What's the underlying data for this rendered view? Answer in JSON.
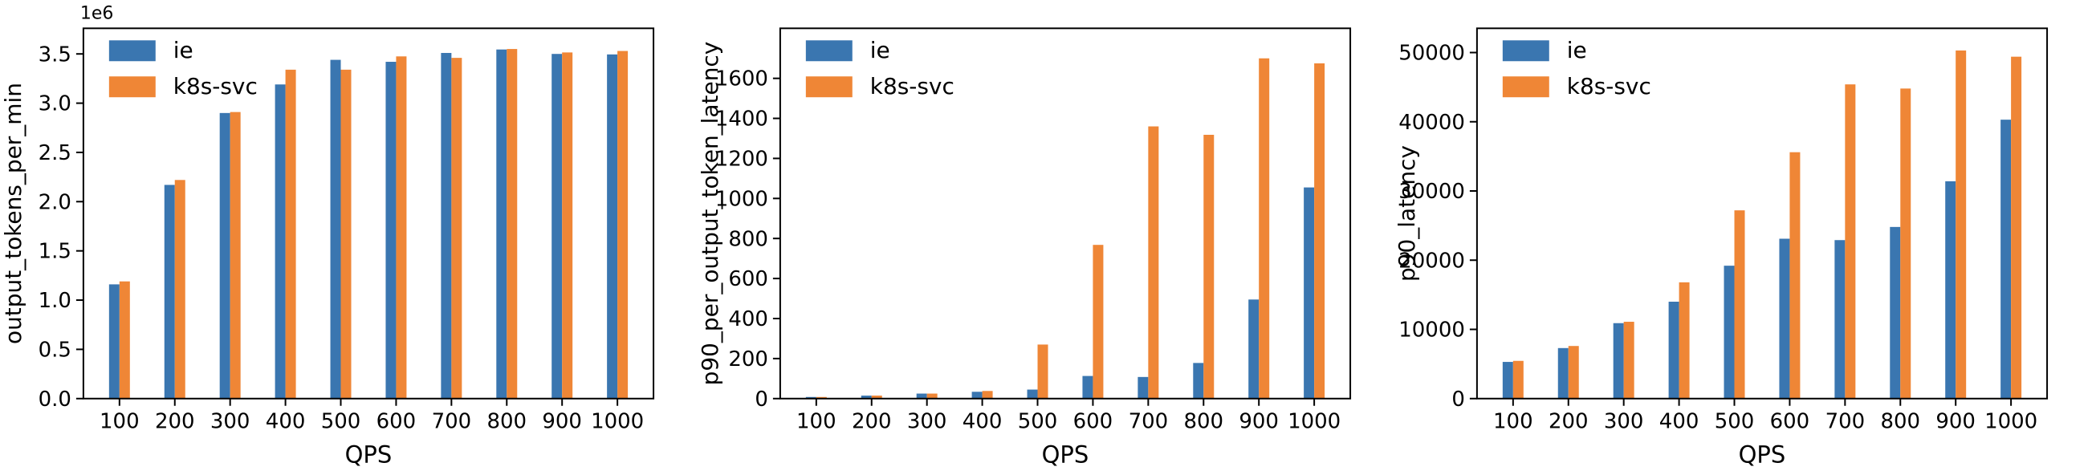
{
  "figure": {
    "background": "#ffffff",
    "series_colors": {
      "ie": "#3A76B0",
      "k8s-svc": "#EF8636"
    },
    "legend_entries": [
      "ie",
      "k8s-svc"
    ],
    "xlabel": "QPS"
  },
  "chart_data": [
    {
      "type": "bar",
      "title": "",
      "ylabel": "output_tokens_per_min",
      "xlabel": "QPS",
      "y_offset_label": "1e6",
      "grid": false,
      "legend_position": "upper left",
      "categories": [
        100,
        200,
        300,
        400,
        500,
        600,
        700,
        800,
        900,
        1000
      ],
      "xtick_labels": [
        "100",
        "200",
        "300",
        "400",
        "500",
        "600",
        "700",
        "800",
        "900",
        "1000"
      ],
      "yticks": [
        0,
        500000,
        1000000,
        1500000,
        2000000,
        2500000,
        3000000,
        3500000
      ],
      "ytick_labels": [
        "0.0",
        "0.5",
        "1.0",
        "1.5",
        "2.0",
        "2.5",
        "3.0",
        "3.5"
      ],
      "ylim": [
        0,
        3760000
      ],
      "series": [
        {
          "name": "ie",
          "color": "#3A76B0",
          "values": [
            1160000,
            2170000,
            2900000,
            3190000,
            3440000,
            3420000,
            3510000,
            3545000,
            3500000,
            3495000
          ]
        },
        {
          "name": "k8s-svc",
          "color": "#EF8636",
          "values": [
            1190000,
            2220000,
            2910000,
            3340000,
            3340000,
            3475000,
            3460000,
            3550000,
            3515000,
            3530000
          ]
        }
      ]
    },
    {
      "type": "bar",
      "title": "",
      "ylabel": "p90_per_output_token_latency",
      "xlabel": "QPS",
      "y_offset_label": "",
      "grid": false,
      "legend_position": "upper left",
      "categories": [
        100,
        200,
        300,
        400,
        500,
        600,
        700,
        800,
        900,
        1000
      ],
      "xtick_labels": [
        "100",
        "200",
        "300",
        "400",
        "500",
        "600",
        "700",
        "800",
        "900",
        "1000"
      ],
      "yticks": [
        0,
        200,
        400,
        600,
        800,
        1000,
        1200,
        1400,
        1600
      ],
      "ytick_labels": [
        "0",
        "200",
        "400",
        "600",
        "800",
        "1000",
        "1200",
        "1400",
        "1600"
      ],
      "ylim": [
        0,
        1850
      ],
      "series": [
        {
          "name": "ie",
          "color": "#3A76B0",
          "values": [
            8,
            15,
            25,
            34,
            45,
            113,
            108,
            178,
            495,
            1055
          ]
        },
        {
          "name": "k8s-svc",
          "color": "#EF8636",
          "values": [
            8,
            15,
            25,
            38,
            270,
            768,
            1360,
            1318,
            1700,
            1675
          ]
        }
      ]
    },
    {
      "type": "bar",
      "title": "",
      "ylabel": "p90_latency",
      "xlabel": "QPS",
      "y_offset_label": "",
      "grid": false,
      "legend_position": "upper left",
      "categories": [
        100,
        200,
        300,
        400,
        500,
        600,
        700,
        800,
        900,
        1000
      ],
      "xtick_labels": [
        "100",
        "200",
        "300",
        "400",
        "500",
        "600",
        "700",
        "800",
        "900",
        "1000"
      ],
      "yticks": [
        0,
        10000,
        20000,
        30000,
        40000,
        50000
      ],
      "ytick_labels": [
        "0",
        "10000",
        "20000",
        "30000",
        "40000",
        "50000"
      ],
      "ylim": [
        0,
        53500
      ],
      "series": [
        {
          "name": "ie",
          "color": "#3A76B0",
          "values": [
            5300,
            7300,
            10900,
            14000,
            19200,
            23100,
            22900,
            24800,
            31400,
            40300
          ]
        },
        {
          "name": "k8s-svc",
          "color": "#EF8636",
          "values": [
            5450,
            7600,
            11100,
            16800,
            27200,
            35600,
            45400,
            44800,
            50300,
            49400
          ]
        }
      ]
    }
  ]
}
